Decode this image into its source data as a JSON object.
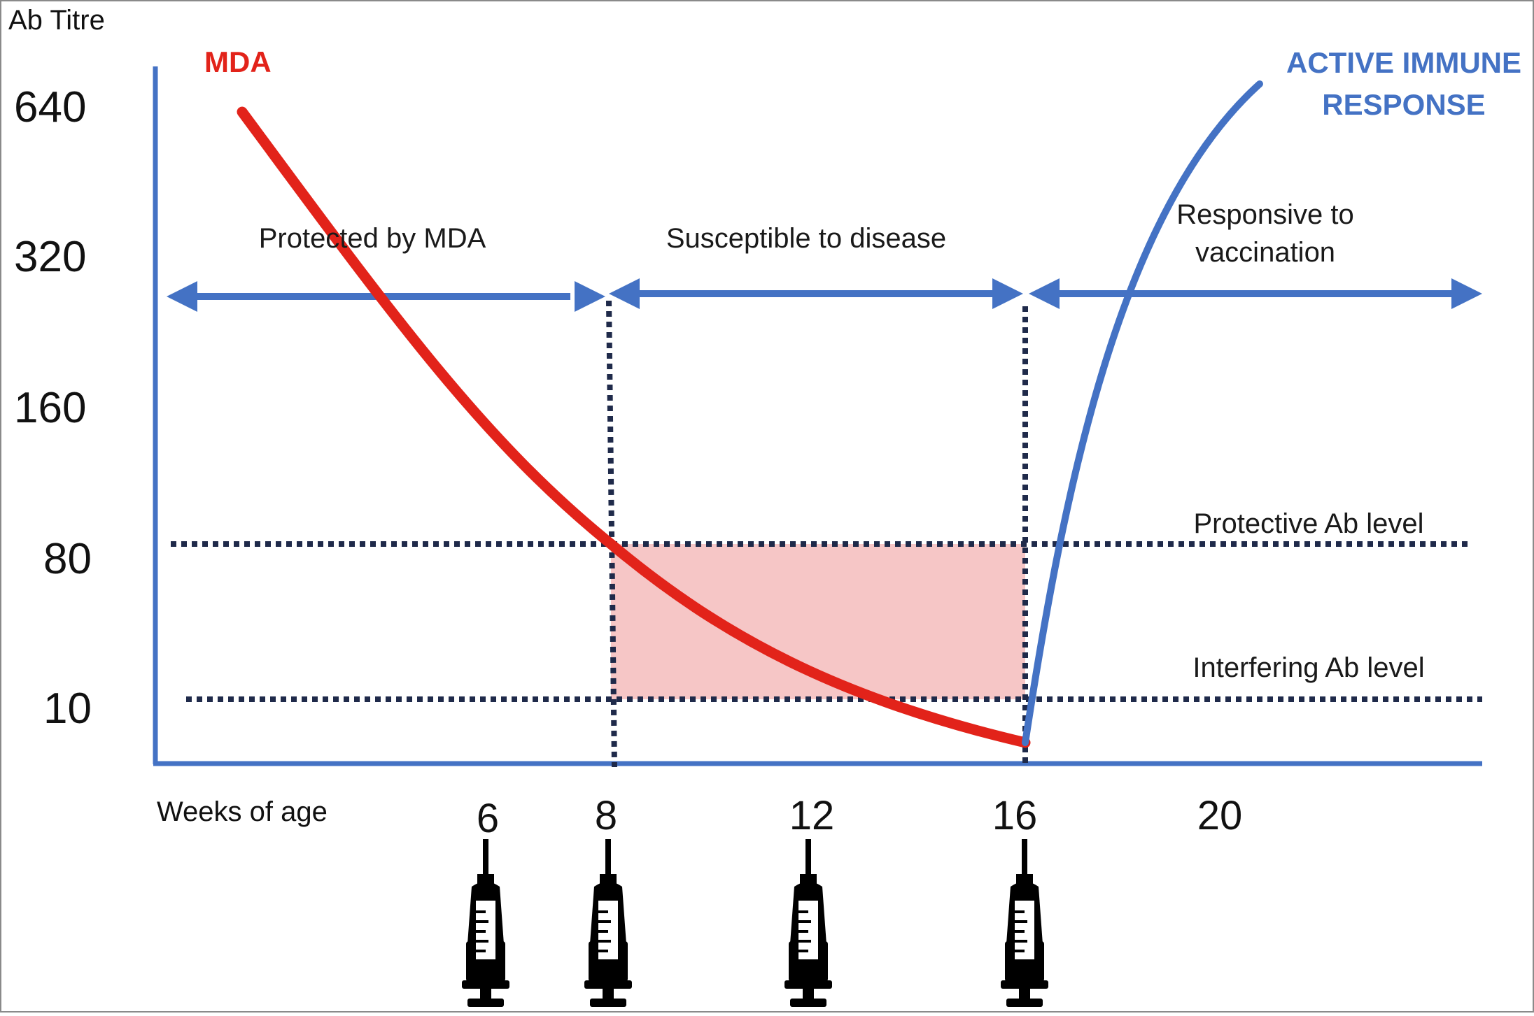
{
  "y_axis": {
    "title": "Ab Titre",
    "ticks": [
      "640",
      "320",
      "160",
      "80",
      "10"
    ]
  },
  "x_axis": {
    "title": "Weeks  of  age",
    "ticks": [
      "6",
      "8",
      "12",
      "16",
      "20"
    ]
  },
  "curves": {
    "mda": {
      "label": "MDA",
      "color": "#e2231a"
    },
    "active": {
      "label_line1": "ACTIVE IMMUNE",
      "label_line2": "RESPONSE",
      "color": "#4472c4"
    }
  },
  "regions": {
    "protected": "Protected  by MDA",
    "susceptible": "Susceptible to disease",
    "responsive_line1": "Responsive to",
    "responsive_line2": "vaccination"
  },
  "levels": {
    "protective": "Protective Ab level",
    "interfering": "Interfering Ab level"
  },
  "colors": {
    "axis": "#4472c4",
    "arrows": "#4472c4",
    "dotted": "#1f2a4a",
    "window_fill": "#f6c6c6"
  },
  "vaccination_icon": "syringe-icon",
  "vaccination_weeks": [
    "6",
    "8",
    "12",
    "16"
  ]
}
